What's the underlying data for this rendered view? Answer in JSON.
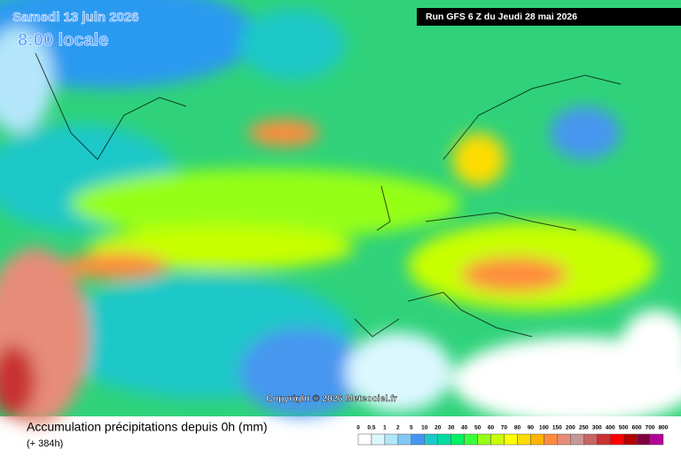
{
  "header": {
    "date": "Samedi 13 juin 2026",
    "time": "8:00 locale",
    "run": "Run GFS 6 Z du Jeudi 28 mai 2026"
  },
  "copyright": "Copyright © 2026 Meteociel.fr",
  "legend": {
    "title": "Accumulation précipitations depuis 0h (mm)",
    "subtitle": "(+ 384h)",
    "ticks": [
      0,
      0.5,
      1,
      2,
      5,
      10,
      20,
      30,
      40,
      50,
      60,
      70,
      80,
      90,
      100,
      150,
      200,
      250,
      300,
      400,
      500,
      600,
      700,
      800
    ],
    "colors": [
      "#ffffff",
      "#dcf8ff",
      "#b4e6fa",
      "#82c8f5",
      "#4696f0",
      "#1ec8c8",
      "#00dca0",
      "#00f064",
      "#3cff3c",
      "#96ff14",
      "#c8ff00",
      "#ffff00",
      "#ffdc00",
      "#ffb400",
      "#ff8c3c",
      "#e68c78",
      "#c89696",
      "#c86464",
      "#c83232",
      "#ff0000",
      "#b40000",
      "#800040",
      "#b40096"
    ]
  }
}
